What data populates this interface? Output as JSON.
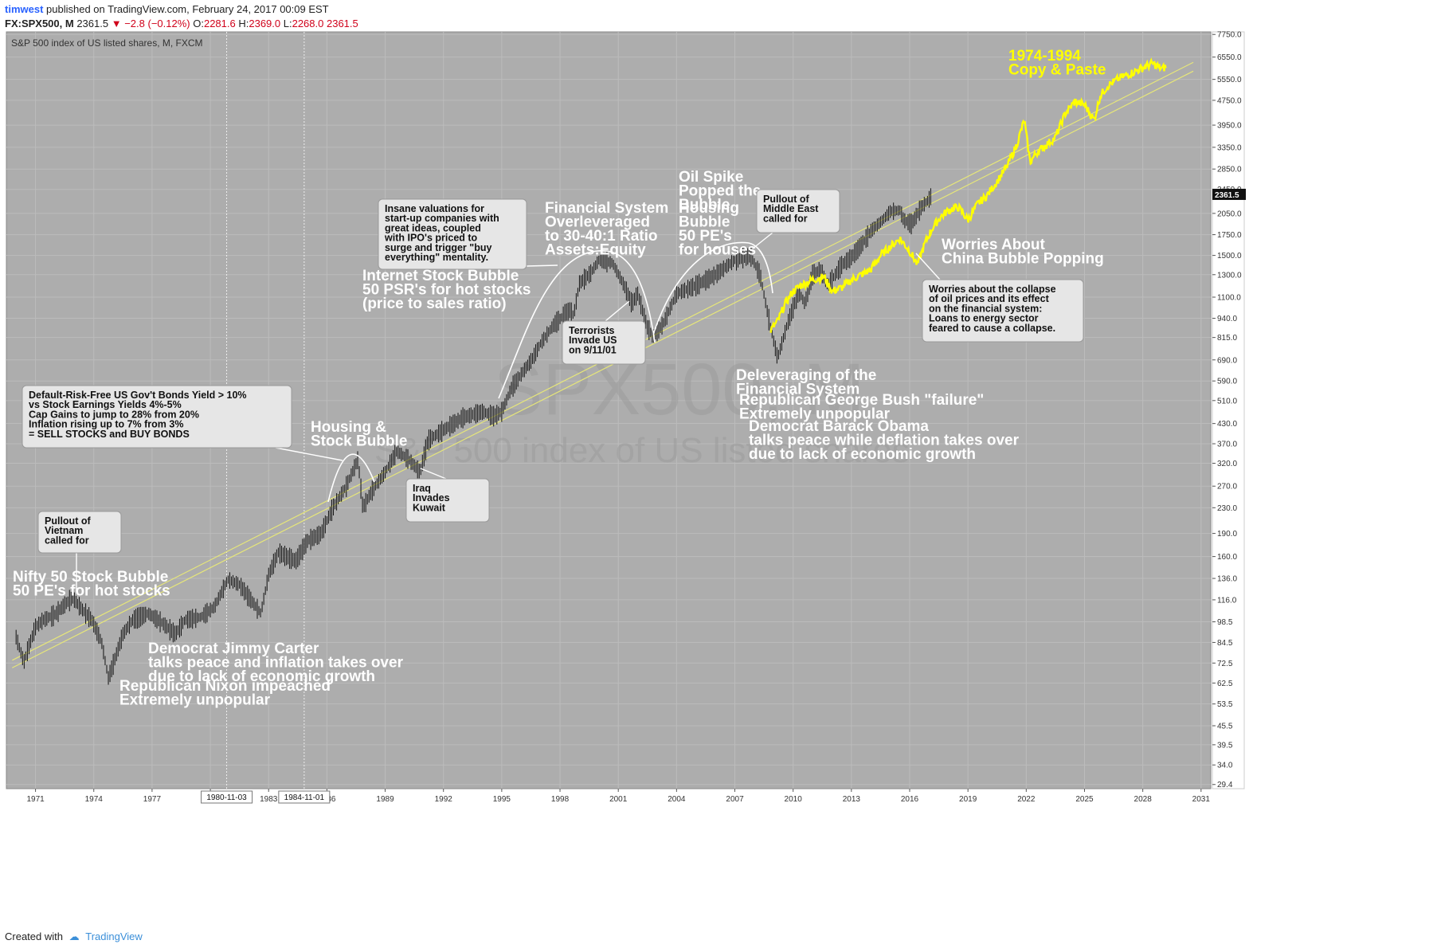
{
  "header": {
    "user": "timwest",
    "published": "published on TradingView.com, February 24, 2017 00:09 EST",
    "symbol": "FX:SPX500, M",
    "last": "2361.5",
    "change": "−2.8 (−0.12%)",
    "o_label": "O:",
    "o_val": "2281.6",
    "h_label": "H:",
    "h_val": "2369.0",
    "l_label": "L:",
    "l_val": "2268.0",
    "c_val": "2361.5"
  },
  "footer": {
    "created_with": "Created with",
    "brand": "TradingView"
  },
  "colors": {
    "plot_bg": "#adadad",
    "bars": "#111111",
    "projection": "#ffff00",
    "trendline": "#e6e67a",
    "annotation_text": "#ffffff",
    "callout_bg": "#e6e6e6",
    "watermark": "#9a9a9a"
  },
  "chart_data": {
    "type": "line",
    "title": "S&P 500 index of US listed shares, M, FXCM",
    "watermark_symbol": "SPX500, M",
    "watermark_desc": "S&P 500 index of US listed shares",
    "y_scale": "log",
    "ylim": [
      28.5,
      7900
    ],
    "y_ticks": [
      "7750.0",
      "6550.0",
      "5550.0",
      "4750.0",
      "3950.0",
      "3350.0",
      "2850.0",
      "2450.0",
      "2050.0",
      "1750.0",
      "1500.0",
      "1300.0",
      "1100.0",
      "940.0",
      "815.0",
      "690.0",
      "590.0",
      "510.0",
      "430.0",
      "370.0",
      "320.0",
      "270.0",
      "230.0",
      "190.0",
      "160.0",
      "136.0",
      "116.0",
      "98.5",
      "84.5",
      "72.5",
      "62.5",
      "53.5",
      "45.5",
      "39.5",
      "34.0",
      "29.4"
    ],
    "x_ticks": [
      "1971",
      "1974",
      "1977",
      "1980",
      "1983",
      "1986",
      "1989",
      "1992",
      "1995",
      "1998",
      "2001",
      "2004",
      "2007",
      "2010",
      "2013",
      "2016",
      "2019",
      "2022",
      "2025",
      "2028",
      "2031"
    ],
    "xlim": [
      1969.5,
      2031.5
    ],
    "price_label": "2361.5",
    "vertical_markers": [
      {
        "label": "1980-11-03",
        "x": 1980.84
      },
      {
        "label": "1984-11-01",
        "x": 1984.83
      }
    ],
    "series": [
      {
        "name": "SPX500",
        "style": "bars",
        "x": [
          1970.0,
          1970.4,
          1970.6,
          1971.0,
          1971.4,
          1972.0,
          1972.5,
          1972.9,
          1973.4,
          1973.9,
          1974.4,
          1974.75,
          1975.0,
          1975.5,
          1976.0,
          1976.8,
          1977.5,
          1978.2,
          1978.7,
          1979.5,
          1980.2,
          1980.9,
          1981.5,
          1982.6,
          1983.0,
          1983.5,
          1984.4,
          1985.0,
          1985.7,
          1986.3,
          1987.0,
          1987.6,
          1987.85,
          1988.3,
          1989.0,
          1989.6,
          1990.2,
          1990.8,
          1991.2,
          1992.0,
          1993.0,
          1994.0,
          1994.6,
          1995.0,
          1995.5,
          1996.0,
          1996.6,
          1997.0,
          1997.7,
          1998.5,
          1998.7,
          1999.0,
          1999.6,
          2000.0,
          2000.7,
          2001.3,
          2001.7,
          2002.0,
          2002.5,
          2002.8,
          2003.3,
          2004.0,
          2005.0,
          2006.0,
          2007.0,
          2007.8,
          2008.3,
          2008.8,
          2009.2,
          2009.7,
          2010.3,
          2010.6,
          2011.0,
          2011.4,
          2011.8,
          2012.5,
          2013.0,
          2013.6,
          2014.0,
          2014.6,
          2015.0,
          2015.5,
          2015.7,
          2016.1,
          2016.6,
          2017.0,
          2017.15
        ],
        "y": [
          88,
          73,
          80,
          95,
          100,
          104,
          112,
          118,
          108,
          100,
          85,
          65,
          72,
          90,
          100,
          105,
          98,
          90,
          100,
          102,
          110,
          135,
          130,
          105,
          140,
          165,
          155,
          180,
          190,
          230,
          270,
          330,
          230,
          260,
          300,
          350,
          330,
          300,
          380,
          410,
          450,
          470,
          455,
          470,
          560,
          620,
          700,
          780,
          900,
          1000,
          960,
          1220,
          1320,
          1450,
          1420,
          1200,
          1050,
          1130,
          880,
          820,
          900,
          1130,
          1200,
          1300,
          1450,
          1500,
          1300,
          900,
          700,
          900,
          1150,
          1050,
          1300,
          1350,
          1200,
          1400,
          1480,
          1650,
          1800,
          1950,
          2080,
          2100,
          1950,
          1900,
          2150,
          2280,
          2361.5
        ]
      },
      {
        "name": "1974-1994 Copy & Paste",
        "style": "line",
        "x": [
          2008.85,
          2009.2,
          2009.6,
          2010.0,
          2010.4,
          2011.0,
          2011.6,
          2012.0,
          2012.5,
          2013.0,
          2013.5,
          2014.0,
          2014.5,
          2015.0,
          2015.5,
          2016.0,
          2016.4,
          2016.8,
          2017.2,
          2017.6,
          2018.0,
          2018.5,
          2019.0,
          2019.5,
          2020.0,
          2020.5,
          2021.0,
          2021.5,
          2021.9,
          2022.2,
          2022.5,
          2023.0,
          2023.5,
          2024.0,
          2024.5,
          2025.0,
          2025.5,
          2025.8,
          2026.2,
          2026.8,
          2027.5,
          2028.0,
          2028.5,
          2029.0,
          2029.2
        ],
        "y": [
          860,
          920,
          1050,
          1150,
          1200,
          1250,
          1280,
          1150,
          1180,
          1250,
          1300,
          1350,
          1500,
          1600,
          1700,
          1550,
          1400,
          1650,
          1850,
          2000,
          2100,
          2150,
          1950,
          2200,
          2350,
          2600,
          2900,
          3400,
          4100,
          3000,
          3200,
          3400,
          3600,
          4300,
          4700,
          4600,
          4100,
          4900,
          5300,
          5600,
          5850,
          6050,
          6250,
          6000,
          6100
        ]
      }
    ],
    "trendlines": [
      {
        "x": [
          1969.8,
          2030.6
        ],
        "y": [
          70,
          5900
        ]
      },
      {
        "x": [
          1969.8,
          2030.6
        ],
        "y": [
          74,
          6300
        ]
      }
    ],
    "annotations": [
      {
        "text": [
          "Nifty 50 Stock Bubble",
          "50 PE's for hot stocks"
        ]
      },
      {
        "text": [
          "Democrat Jimmy Carter",
          "talks peace and inflation takes over",
          "due to lack of economic growth"
        ]
      },
      {
        "text": [
          "Republican Nixon impeached",
          "Extremely unpopular"
        ]
      },
      {
        "text": [
          "Housing &",
          "Stock Bubble"
        ]
      },
      {
        "text": [
          "Internet Stock Bubble",
          "50 PSR's for hot stocks",
          "(price to sales ratio)"
        ]
      },
      {
        "text": [
          "Financial System",
          "Overleveraged",
          "to 30-40:1 Ratio",
          "Assets:Equity"
        ]
      },
      {
        "text": [
          "Oil Spike",
          "Popped the",
          "Bubble"
        ]
      },
      {
        "text": [
          "Housing",
          "Bubble",
          "50 PE's",
          "for houses"
        ]
      },
      {
        "text": [
          "Deleveraging of the",
          "Financial System"
        ]
      },
      {
        "text": [
          "Republican George Bush \"failure\"",
          "Extremely unpopular"
        ]
      },
      {
        "text": [
          "Democrat Barack Obama",
          "talks peace while deflation takes over",
          "due to lack of economic growth"
        ]
      },
      {
        "text": [
          "Worries About",
          "China Bubble Popping"
        ]
      },
      {
        "text": [
          "1974-1994",
          "Copy & Paste"
        ]
      }
    ],
    "callouts": [
      {
        "text": [
          "Pullout of",
          "Vietnam",
          "called for"
        ]
      },
      {
        "text": [
          "Default-Risk-Free US Gov't Bonds Yield > 10%",
          "vs Stock Earnings Yields 4%-5%",
          "Cap Gains to jump to 28% from 20%",
          "Inflation rising up to 7% from 3%",
          "= SELL STOCKS and BUY BONDS"
        ]
      },
      {
        "text": [
          "Iraq",
          "Invades",
          "Kuwait"
        ]
      },
      {
        "text": [
          "Insane valuations for",
          "start-up companies with",
          "great ideas, coupled",
          "with IPO's priced to",
          "surge and trigger \"buy",
          "everything\" mentality."
        ]
      },
      {
        "text": [
          "Terrorists",
          "Invade US",
          "on 9/11/01"
        ]
      },
      {
        "text": [
          "Pullout of",
          "Middle East",
          "called for"
        ]
      },
      {
        "text": [
          "Worries about the collapse",
          "of oil prices and its effect",
          "on the financial system:",
          "Loans to energy sector",
          "feared to cause a collapse."
        ]
      }
    ]
  }
}
